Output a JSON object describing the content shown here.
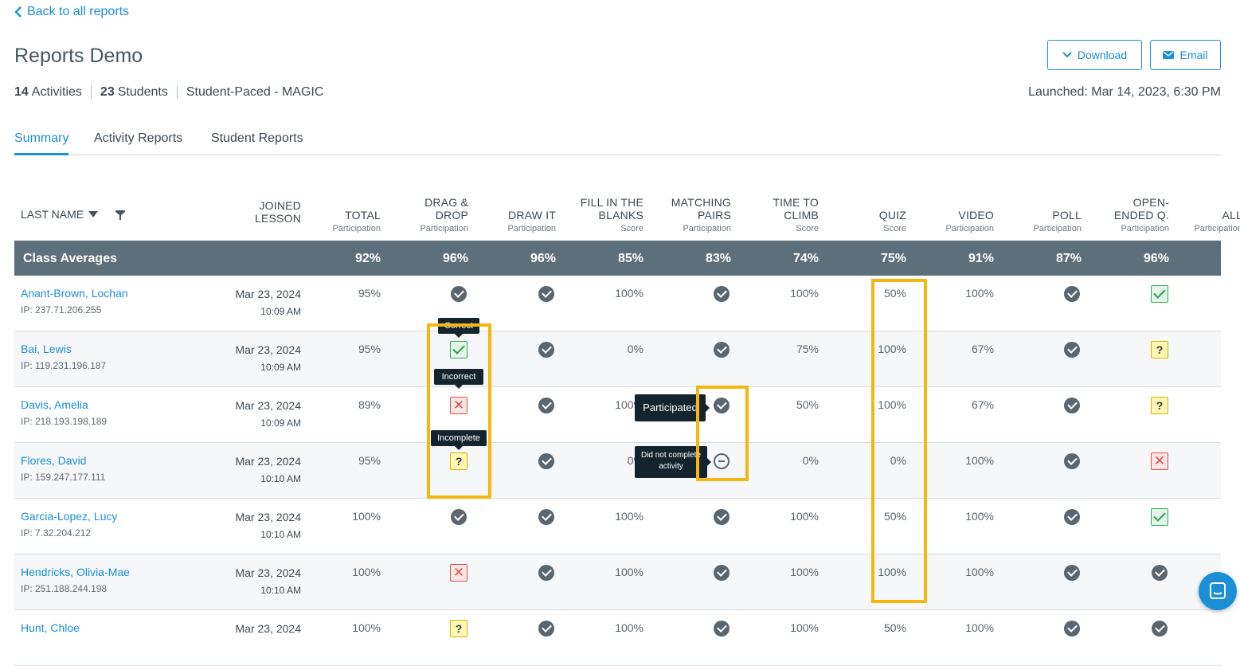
{
  "nav": {
    "back_label": "Back to all reports"
  },
  "report": {
    "title": "Reports Demo",
    "activities_count": "14",
    "activities_label": "Activities",
    "students_count": "23",
    "students_label": "Students",
    "mode": "Student-Paced - MAGIC",
    "launched": "Launched: Mar 14, 2023, 6:30 PM"
  },
  "actions": {
    "download_label": "Download",
    "email_label": "Email"
  },
  "tabs": [
    {
      "label": "Summary",
      "active": true
    },
    {
      "label": "Activity Reports",
      "active": false
    },
    {
      "label": "Student Reports",
      "active": false
    }
  ],
  "table": {
    "last_name_header": "LAST NAME",
    "joined_header": [
      "JOINED",
      "LESSON"
    ],
    "columns": [
      {
        "name": [
          "TOTAL"
        ],
        "sub": "Participation"
      },
      {
        "name": [
          "DRAG &",
          "DROP"
        ],
        "sub": "Participation"
      },
      {
        "name": [
          "DRAW IT"
        ],
        "sub": "Participation"
      },
      {
        "name": [
          "FILL IN THE",
          "BLANKS"
        ],
        "sub": "Score"
      },
      {
        "name": [
          "MATCHING",
          "PAIRS"
        ],
        "sub": "Participation"
      },
      {
        "name": [
          "TIME TO",
          "CLIMB"
        ],
        "sub": "Score"
      },
      {
        "name": [
          "QUIZ"
        ],
        "sub": "Score"
      },
      {
        "name": [
          "VIDEO"
        ],
        "sub": "Participation"
      },
      {
        "name": [
          "POLL"
        ],
        "sub": "Participation"
      },
      {
        "name": [
          "OPEN-",
          "ENDED Q."
        ],
        "sub": "Participation"
      },
      {
        "name": [
          "ALL"
        ],
        "sub": "Participation"
      }
    ],
    "class_averages_label": "Class Averages",
    "class_averages": [
      "92%",
      "96%",
      "96%",
      "85%",
      "83%",
      "74%",
      "75%",
      "91%",
      "87%",
      "96%"
    ],
    "rows": [
      {
        "name": "Anant-Brown, Lochan",
        "ip": "IP: 237.71.206.255",
        "date": "Mar 23, 2024",
        "time": "10:09 AM",
        "cells": [
          "95%",
          "check",
          "check",
          "100%",
          "check",
          "100%",
          "50%",
          "100%",
          "check",
          "correct"
        ]
      },
      {
        "name": "Bai, Lewis",
        "ip": "IP: 119.231.196.187",
        "date": "Mar 23, 2024",
        "time": "10:09 AM",
        "cells": [
          "95%",
          "correct",
          "check",
          "0%",
          "check",
          "75%",
          "100%",
          "67%",
          "check",
          "incomplete"
        ]
      },
      {
        "name": "Davis, Amelia",
        "ip": "IP: 218.193.198.189",
        "date": "Mar 23, 2024",
        "time": "10:09 AM",
        "cells": [
          "89%",
          "incorrect",
          "check",
          "100%",
          "check",
          "50%",
          "100%",
          "67%",
          "check",
          "incomplete"
        ]
      },
      {
        "name": "Flores, David",
        "ip": "IP: 159.247.177.111",
        "date": "Mar 23, 2024",
        "time": "10:10 AM",
        "cells": [
          "95%",
          "incomplete",
          "check",
          "0%",
          "not-completed",
          "0%",
          "0%",
          "100%",
          "check",
          "incorrect"
        ]
      },
      {
        "name": "Garcia-Lopez, Lucy",
        "ip": "IP: 7.32.204.212",
        "date": "Mar 23, 2024",
        "time": "10:10 AM",
        "cells": [
          "100%",
          "check",
          "check",
          "100%",
          "check",
          "100%",
          "50%",
          "100%",
          "check",
          "correct"
        ]
      },
      {
        "name": "Hendricks, Olivia-Mae",
        "ip": "IP: 251.188.244.198",
        "date": "Mar 23, 2024",
        "time": "10:10 AM",
        "cells": [
          "100%",
          "incorrect",
          "check",
          "100%",
          "check",
          "100%",
          "100%",
          "100%",
          "check",
          "check"
        ]
      },
      {
        "name": "Hunt, Chloe",
        "ip": "",
        "date": "Mar 23, 2024",
        "time": "",
        "cells": [
          "100%",
          "incomplete",
          "check",
          "100%",
          "check",
          "100%",
          "50%",
          "100%",
          "check",
          "check"
        ]
      }
    ]
  },
  "tooltips": {
    "correct": "Correct",
    "incorrect": "Incorrect",
    "incomplete": "Incomplete",
    "participated": "Participated",
    "not_completed": "Did not complete activity"
  },
  "colors": {
    "accent": "#1b8fd6",
    "averages_bar": "#5e6f7c",
    "highlight": "#f4b60f"
  }
}
